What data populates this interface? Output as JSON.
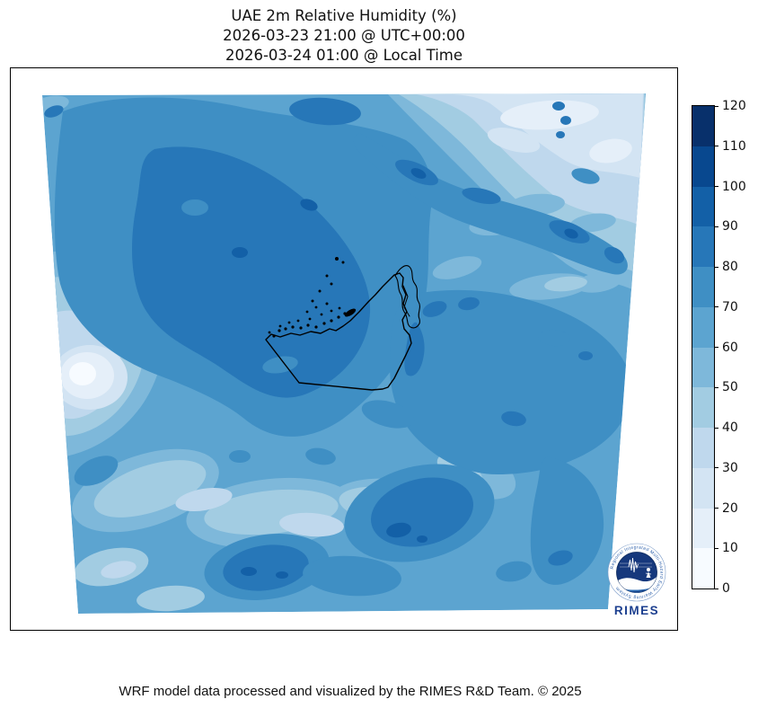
{
  "title": {
    "line1": "UAE 2m Relative Humidity (%)",
    "line2": "2026-03-23 21:00 @ UTC+00:00",
    "line3": "2026-03-24 01:00 @ Local Time"
  },
  "footer": "WRF model data processed and visualized by the RIMES R&D Team. © 2025",
  "logo": {
    "label": "RIMES",
    "ring_text": "Regional Integrated Multi-Hazard Early Warning System",
    "ring_text_color": "#2b5faa",
    "badge_color": "#16387c",
    "sea_color": "#2e6db4",
    "label_color": "#1c3f8f"
  },
  "colorbar": {
    "min": 0,
    "max": 120,
    "step": 10,
    "ticks": [
      0,
      10,
      20,
      30,
      40,
      50,
      60,
      70,
      80,
      90,
      100,
      110,
      120
    ],
    "colors": [
      "#f7fbff",
      "#e5eff9",
      "#d3e4f3",
      "#bfd8ed",
      "#a2cce2",
      "#7eb8da",
      "#5ca4d0",
      "#3f8fc4",
      "#2777b8",
      "#1360a7",
      "#08488f",
      "#08306b"
    ],
    "colormap_name": "Blues (12 discrete levels)"
  },
  "map": {
    "border_color": "#000000",
    "overlay": "UAE coastline, islands and national border drawn in black"
  },
  "chart_data": {
    "type": "heatmap",
    "variable": "2m Relative Humidity",
    "units": "%",
    "model": "WRF",
    "title": "UAE 2m Relative Humidity (%)",
    "valid_time_utc": "2026-03-23 21:00 UTC+00:00",
    "valid_time_local": "2026-03-24 01:00 Local Time",
    "region": "UAE and surrounding Arabian Gulf / Arabian Peninsula model domain (warped trapezoid projection)",
    "levels": [
      0,
      10,
      20,
      30,
      40,
      50,
      60,
      70,
      80,
      90,
      100,
      110,
      120
    ],
    "colormap": "Blues, discrete filled contours every 10%",
    "legend_position": "vertical colorbar right side, 0 bottom to 120 top",
    "overlay": "UAE coastline and borders in black near domain center",
    "field_summary": [
      {
        "area": "large central-west inland mass",
        "rh_percent": "80-90 with 90-100 cores"
      },
      {
        "area": "upper-left / north-west band",
        "rh_percent": "70-80"
      },
      {
        "area": "top-right (north-east) corner",
        "rh_percent": "20-40, patches 10-20"
      },
      {
        "area": "diagonal streak from top-center to east edge",
        "rh_percent": "80-100 spots"
      },
      {
        "area": "west edge mid-height pocket",
        "rh_percent": "0-30 (driest pocket)"
      },
      {
        "area": "south-west diagonal swath",
        "rh_percent": "40-60"
      },
      {
        "area": "south-central blobs",
        "rh_percent": "80-100"
      },
      {
        "area": "south-east quadrant base",
        "rh_percent": "60-80"
      },
      {
        "area": "around UAE coastline and Gulf waters",
        "rh_percent": "60-80"
      }
    ]
  }
}
